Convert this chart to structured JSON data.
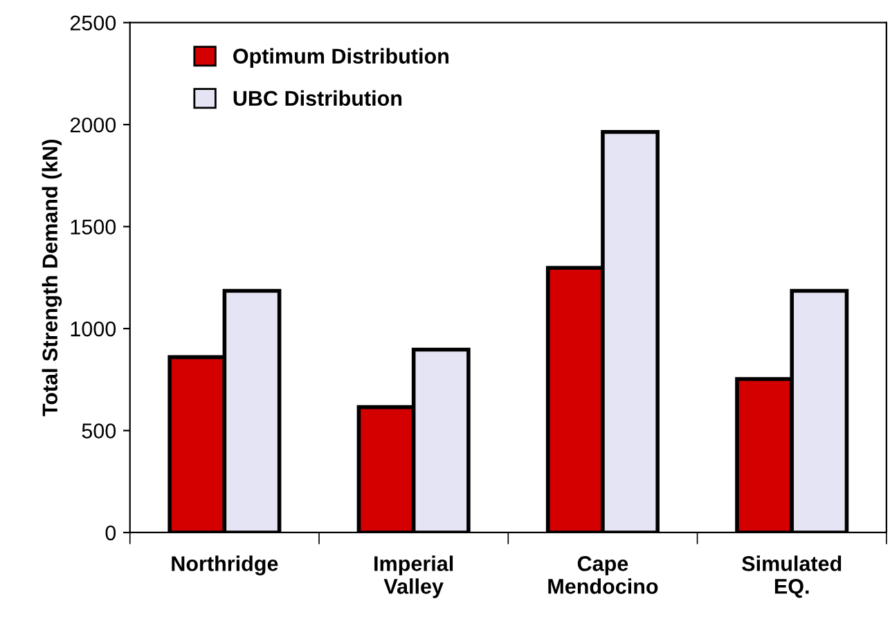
{
  "chart_data": {
    "type": "bar",
    "ylabel": "Total Strength Demand (kN)",
    "categories": [
      "Northridge",
      "Imperial\nValley",
      "Cape\nMendocino",
      "Simulated\nEQ."
    ],
    "series": [
      {
        "name": "Optimum Distribution",
        "color": "#d40000",
        "values": [
          860,
          615,
          1298,
          753
        ]
      },
      {
        "name": "UBC Distribution",
        "color": "#e4e4f4",
        "values": [
          1185,
          897,
          1964,
          1185
        ]
      }
    ],
    "ylim": [
      0,
      2500
    ],
    "yticks": [
      0,
      500,
      1000,
      1500,
      2000,
      2500
    ],
    "grid": false,
    "legend": "top left"
  }
}
